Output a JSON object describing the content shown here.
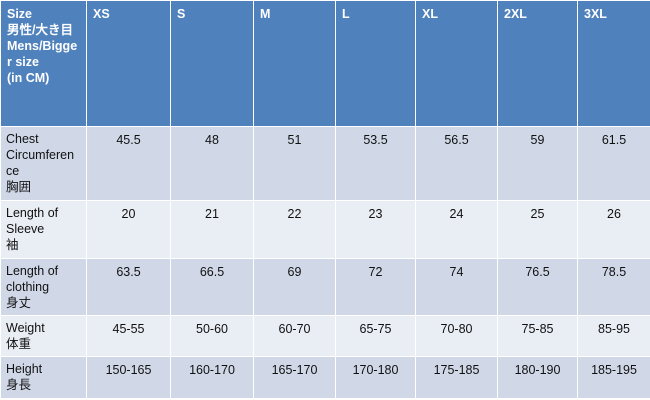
{
  "table": {
    "header": {
      "label_lines": [
        "Size",
        "男性/大き目",
        "Mens/Bigge",
        "r  size",
        "(in CM)"
      ],
      "sizes": [
        "XS",
        "S",
        "M",
        "L",
        "XL",
        "2XL",
        "3XL"
      ]
    },
    "rows": [
      {
        "label_lines": [
          "Chest",
          "Circumferen",
          "ce",
          "胸囲"
        ],
        "values": [
          45.5,
          48,
          51,
          53.5,
          56.5,
          59,
          61.5
        ]
      },
      {
        "label_lines": [
          "Length of",
          "Sleeve",
          "袖"
        ],
        "values": [
          20,
          21,
          22,
          23,
          24,
          25,
          26
        ]
      },
      {
        "label_lines": [
          "Length of",
          "clothing",
          "身丈"
        ],
        "values": [
          63.5,
          66.5,
          69,
          72,
          74,
          76.5,
          78.5
        ]
      },
      {
        "label_lines": [
          "Weight",
          "体重"
        ],
        "values": [
          "45-55",
          "50-60",
          "60-70",
          "65-75",
          "70-80",
          "75-85",
          "85-95"
        ]
      },
      {
        "label_lines": [
          "Height",
          "身長"
        ],
        "values": [
          "150-165",
          "160-170",
          "165-170",
          "170-180",
          "175-185",
          "180-190",
          "185-195"
        ]
      }
    ]
  }
}
